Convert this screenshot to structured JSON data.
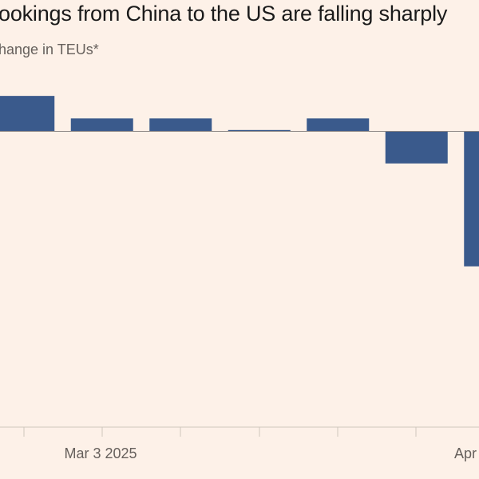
{
  "chart_data": {
    "type": "bar",
    "title": "ookings from China to the US are falling sharply",
    "subtitle": "hange in TEUs*",
    "x_tick_labels": [
      "Mar 3 2025",
      "Apr"
    ],
    "values": [
      5.5,
      2,
      2,
      0.2,
      2,
      -5,
      -21
    ],
    "ylim": [
      -46,
      8
    ],
    "colors": {
      "bar": "#3a5a8c",
      "zero_line": "#8a8583",
      "axis": "#cfc6bd",
      "background": "#fdf1e8"
    }
  }
}
